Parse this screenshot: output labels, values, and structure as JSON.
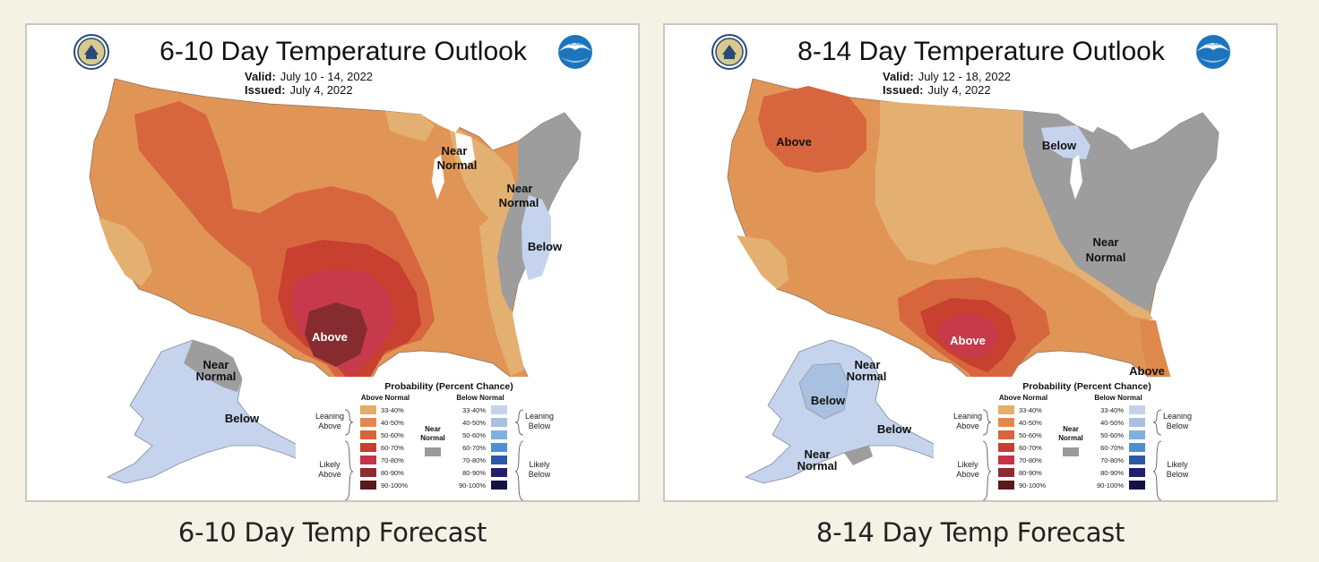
{
  "maps": [
    {
      "title": "6-10 Day Temperature Outlook",
      "valid_label": "Valid:",
      "valid_value": "July 10 - 14, 2022",
      "issued_label": "Issued:",
      "issued_value": "July 4, 2022",
      "caption": "6-10 Day Temp Forecast",
      "region_labels": [
        "Near",
        "Normal",
        "Near",
        "Normal",
        "Below",
        "Above",
        "Near",
        "Normal",
        "Below"
      ]
    },
    {
      "title": "8-14 Day Temperature Outlook",
      "valid_label": "Valid:",
      "valid_value": "July 12 - 18, 2022",
      "issued_label": "Issued:",
      "issued_value": "July 4, 2022",
      "caption": "8-14 Day Temp Forecast",
      "region_labels": [
        "Above",
        "Below",
        "Near",
        "Normal",
        "Above",
        "Above",
        "Near",
        "Normal",
        "Below",
        "Below",
        "Near",
        "Normal"
      ]
    }
  ],
  "legend": {
    "title": "Probability (Percent Chance)",
    "above_header": "Above Normal",
    "below_header": "Below Normal",
    "near_label_1": "Near",
    "near_label_2": "Normal",
    "leaning_above_1": "Leaning",
    "leaning_above_2": "Above",
    "likely_above_1": "Likely",
    "likely_above_2": "Above",
    "leaning_below_1": "Leaning",
    "leaning_below_2": "Below",
    "likely_below_1": "Likely",
    "likely_below_2": "Below",
    "ranges": [
      "33-40%",
      "40-50%",
      "50-60%",
      "60-70%",
      "70-80%",
      "80-90%",
      "90-100%"
    ],
    "above_colors": [
      "#e3ad6b",
      "#e0894d",
      "#d7643d",
      "#c93c30",
      "#c53447",
      "#8a2c30",
      "#5a1a1a"
    ],
    "below_colors": [
      "#c6d2ea",
      "#a9c0e0",
      "#7fb1e0",
      "#4a90d6",
      "#2a5aa8",
      "#23206b",
      "#141244"
    ],
    "near_color": "#9a9a9a"
  },
  "colors": {
    "page_bg": "#f3f2e4",
    "noaa_blue": "#1c75bc"
  }
}
